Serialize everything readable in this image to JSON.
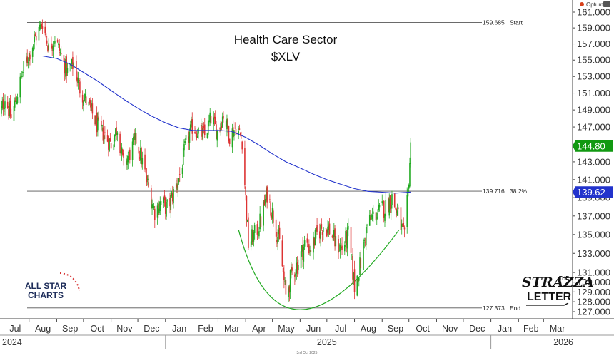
{
  "chart_data": {
    "type": "candlestick",
    "title": "Health Care Sector",
    "subtitle": "$XLV",
    "brand": "Optuma",
    "footer_date": "3rd Oct 2025",
    "logos": {
      "left": [
        "ALL STAR",
        "CHARTS"
      ],
      "right": [
        "THE",
        "STRAZZA",
        "LETTER"
      ]
    },
    "x_months": [
      "Jul",
      "Aug",
      "Sep",
      "Oct",
      "Nov",
      "Dec",
      "Jan",
      "Feb",
      "Mar",
      "Apr",
      "May",
      "Jun",
      "Jul",
      "Aug",
      "Sep",
      "Oct",
      "Nov",
      "Dec",
      "Jan",
      "Feb",
      "Mar"
    ],
    "x_years": [
      "2024",
      "2025",
      "2026"
    ],
    "y_ticks": [
      "127.000",
      "128.000",
      "129.000",
      "130.000",
      "131.000",
      "133.000",
      "135.000",
      "137.000",
      "139.000",
      "141.000",
      "143.000",
      "145.000",
      "147.000",
      "149.000",
      "151.000",
      "153.000",
      "155.000",
      "157.000",
      "159.000",
      "161.000"
    ],
    "y_scale": "log",
    "y_range": [
      126.2,
      161.6
    ],
    "fib_levels": [
      {
        "price": 159.685,
        "label": "159.685",
        "tag": "Start"
      },
      {
        "price": 139.716,
        "label": "139.716",
        "tag": "38.2%"
      },
      {
        "price": 127.373,
        "label": "127.373",
        "tag": "End"
      }
    ],
    "last_price": {
      "value": "144.80",
      "color": "#119911"
    },
    "moving_average": {
      "value": "139.62",
      "color": "#2233cc"
    },
    "colors": {
      "up": "#22aa22",
      "down": "#dd3333",
      "ma": "#2233cc",
      "arc": "#22aa22",
      "fib": "#555555"
    },
    "price_path": [
      [
        "2024-06-27",
        147.5
      ],
      [
        "2024-07-05",
        150.5
      ],
      [
        "2024-07-12",
        148.0
      ],
      [
        "2024-07-19",
        151.0
      ],
      [
        "2024-07-26",
        154.0
      ],
      [
        "2024-08-02",
        156.0
      ],
      [
        "2024-08-09",
        158.0
      ],
      [
        "2024-08-16",
        159.7
      ],
      [
        "2024-08-23",
        156.5
      ],
      [
        "2024-08-30",
        157.8
      ],
      [
        "2024-09-06",
        155.5
      ],
      [
        "2024-09-13",
        153.5
      ],
      [
        "2024-09-20",
        154.5
      ],
      [
        "2024-09-27",
        151.5
      ],
      [
        "2024-10-04",
        150.0
      ],
      [
        "2024-10-11",
        148.5
      ],
      [
        "2024-10-18",
        146.8
      ],
      [
        "2024-10-25",
        146.0
      ],
      [
        "2024-11-01",
        145.0
      ],
      [
        "2024-11-08",
        147.0
      ],
      [
        "2024-11-15",
        142.5
      ],
      [
        "2024-11-22",
        144.0
      ],
      [
        "2024-11-29",
        145.5
      ],
      [
        "2024-12-06",
        143.0
      ],
      [
        "2024-12-13",
        140.0
      ],
      [
        "2024-12-20",
        137.5
      ],
      [
        "2024-12-27",
        138.5
      ],
      [
        "2025-01-03",
        137.8
      ],
      [
        "2025-01-10",
        139.5
      ],
      [
        "2025-01-17",
        141.5
      ],
      [
        "2025-01-24",
        145.0
      ],
      [
        "2025-01-31",
        147.0
      ],
      [
        "2025-02-07",
        146.5
      ],
      [
        "2025-02-14",
        146.0
      ],
      [
        "2025-02-21",
        148.0
      ],
      [
        "2025-02-28",
        146.5
      ],
      [
        "2025-03-07",
        148.5
      ],
      [
        "2025-03-14",
        146.0
      ],
      [
        "2025-03-21",
        147.0
      ],
      [
        "2025-03-28",
        145.5
      ],
      [
        "2025-04-04",
        134.0
      ],
      [
        "2025-04-11",
        135.0
      ],
      [
        "2025-04-18",
        136.5
      ],
      [
        "2025-04-25",
        139.5
      ],
      [
        "2025-05-02",
        137.0
      ],
      [
        "2025-05-09",
        134.0
      ],
      [
        "2025-05-16",
        128.5
      ],
      [
        "2025-05-23",
        131.0
      ],
      [
        "2025-05-30",
        132.0
      ],
      [
        "2025-06-06",
        134.0
      ],
      [
        "2025-06-13",
        133.5
      ],
      [
        "2025-06-20",
        135.0
      ],
      [
        "2025-06-27",
        136.0
      ],
      [
        "2025-07-04",
        135.5
      ],
      [
        "2025-07-11",
        134.0
      ],
      [
        "2025-07-18",
        133.5
      ],
      [
        "2025-07-25",
        135.0
      ],
      [
        "2025-08-01",
        129.5
      ],
      [
        "2025-08-08",
        132.0
      ],
      [
        "2025-08-15",
        136.0
      ],
      [
        "2025-08-22",
        137.0
      ],
      [
        "2025-08-29",
        137.5
      ],
      [
        "2025-09-05",
        138.0
      ],
      [
        "2025-09-12",
        139.0
      ],
      [
        "2025-09-19",
        137.0
      ],
      [
        "2025-09-26",
        134.5
      ],
      [
        "2025-09-30",
        139.5
      ],
      [
        "2025-10-02",
        143.0
      ],
      [
        "2025-10-03",
        144.8
      ]
    ],
    "ma_path": [
      [
        "2024-08-16",
        155.5
      ],
      [
        "2024-09-01",
        155.2
      ],
      [
        "2024-09-16",
        154.5
      ],
      [
        "2024-10-01",
        153.5
      ],
      [
        "2024-10-16",
        152.5
      ],
      [
        "2024-11-01",
        151.3
      ],
      [
        "2024-11-16",
        150.2
      ],
      [
        "2024-12-01",
        149.2
      ],
      [
        "2024-12-16",
        148.3
      ],
      [
        "2025-01-01",
        147.5
      ],
      [
        "2025-01-16",
        146.9
      ],
      [
        "2025-02-01",
        146.6
      ],
      [
        "2025-02-16",
        146.6
      ],
      [
        "2025-03-01",
        146.6
      ],
      [
        "2025-03-16",
        146.5
      ],
      [
        "2025-04-01",
        145.8
      ],
      [
        "2025-04-16",
        144.9
      ],
      [
        "2025-05-01",
        143.9
      ],
      [
        "2025-05-16",
        143.0
      ],
      [
        "2025-06-01",
        142.3
      ],
      [
        "2025-06-16",
        141.6
      ],
      [
        "2025-07-01",
        141.0
      ],
      [
        "2025-07-16",
        140.5
      ],
      [
        "2025-08-01",
        140.0
      ],
      [
        "2025-08-16",
        139.7
      ],
      [
        "2025-09-01",
        139.6
      ],
      [
        "2025-09-16",
        139.5
      ],
      [
        "2025-10-03",
        139.62
      ]
    ],
    "arc": {
      "start": [
        "2025-03-24",
        135.5
      ],
      "bottom": [
        "2025-06-01",
        127.2
      ],
      "end": [
        "2025-09-20",
        135.5
      ]
    }
  }
}
